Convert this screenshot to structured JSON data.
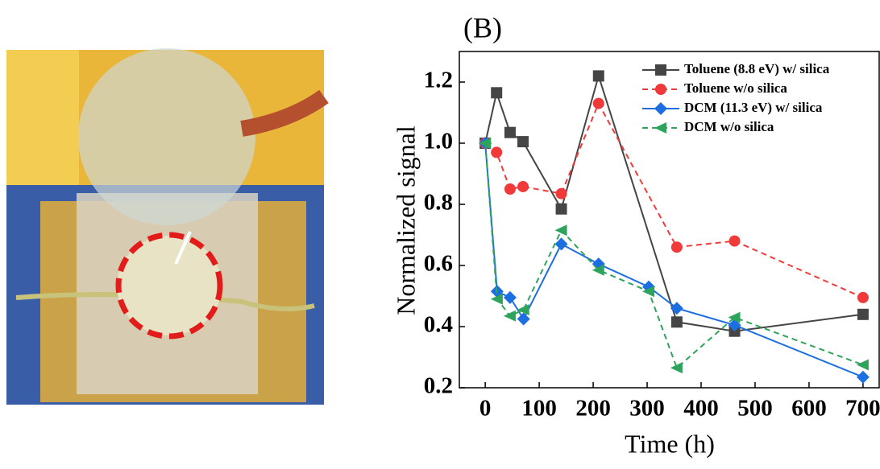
{
  "chart_data": {
    "type": "line",
    "title": "(B)",
    "x_label": "Time (h)",
    "y_label": "Normalized signal",
    "xlim": [
      -48,
      730
    ],
    "ylim": [
      0.2,
      1.3
    ],
    "xticks": [
      0,
      100,
      200,
      300,
      400,
      500,
      600,
      700
    ],
    "yticks": [
      0.2,
      0.4,
      0.6,
      0.8,
      {
        "value": 1.0,
        "label": "1.0"
      },
      1.2
    ],
    "legend": "upper right",
    "series": [
      {
        "name": "Toluene (8.8 eV) w/ silica",
        "color": "#454545",
        "dashed": false,
        "marker": "square",
        "x": [
          0,
          21,
          46,
          70,
          141,
          210,
          355,
          462,
          700
        ],
        "values": [
          1.0,
          1.165,
          1.035,
          1.005,
          0.785,
          1.22,
          0.415,
          0.385,
          0.44
        ]
      },
      {
        "name": "Toluene w/o silica",
        "color": "#f03a3a",
        "dashed": true,
        "marker": "circle",
        "x": [
          0,
          21,
          46,
          70,
          141,
          210,
          355,
          462,
          700
        ],
        "values": [
          1.0,
          0.97,
          0.85,
          0.858,
          0.835,
          1.13,
          0.66,
          0.68,
          0.495
        ]
      },
      {
        "name": "DCM (11.3 eV) w/ silica",
        "color": "#1c6fe0",
        "dashed": false,
        "marker": "diamond",
        "x": [
          0,
          22,
          46,
          71,
          141,
          210,
          303,
          355,
          462,
          700
        ],
        "values": [
          1.0,
          0.515,
          0.495,
          0.425,
          0.67,
          0.605,
          0.53,
          0.46,
          0.405,
          0.235
        ]
      },
      {
        "name": "DCM w/o silica",
        "color": "#2ea35c",
        "dashed": true,
        "marker": "triangle-left",
        "x": [
          0,
          22,
          46,
          71,
          141,
          210,
          303,
          355,
          462,
          700
        ],
        "values": [
          1.0,
          0.49,
          0.435,
          0.455,
          0.715,
          0.585,
          0.515,
          0.265,
          0.43,
          0.275
        ]
      }
    ]
  }
}
